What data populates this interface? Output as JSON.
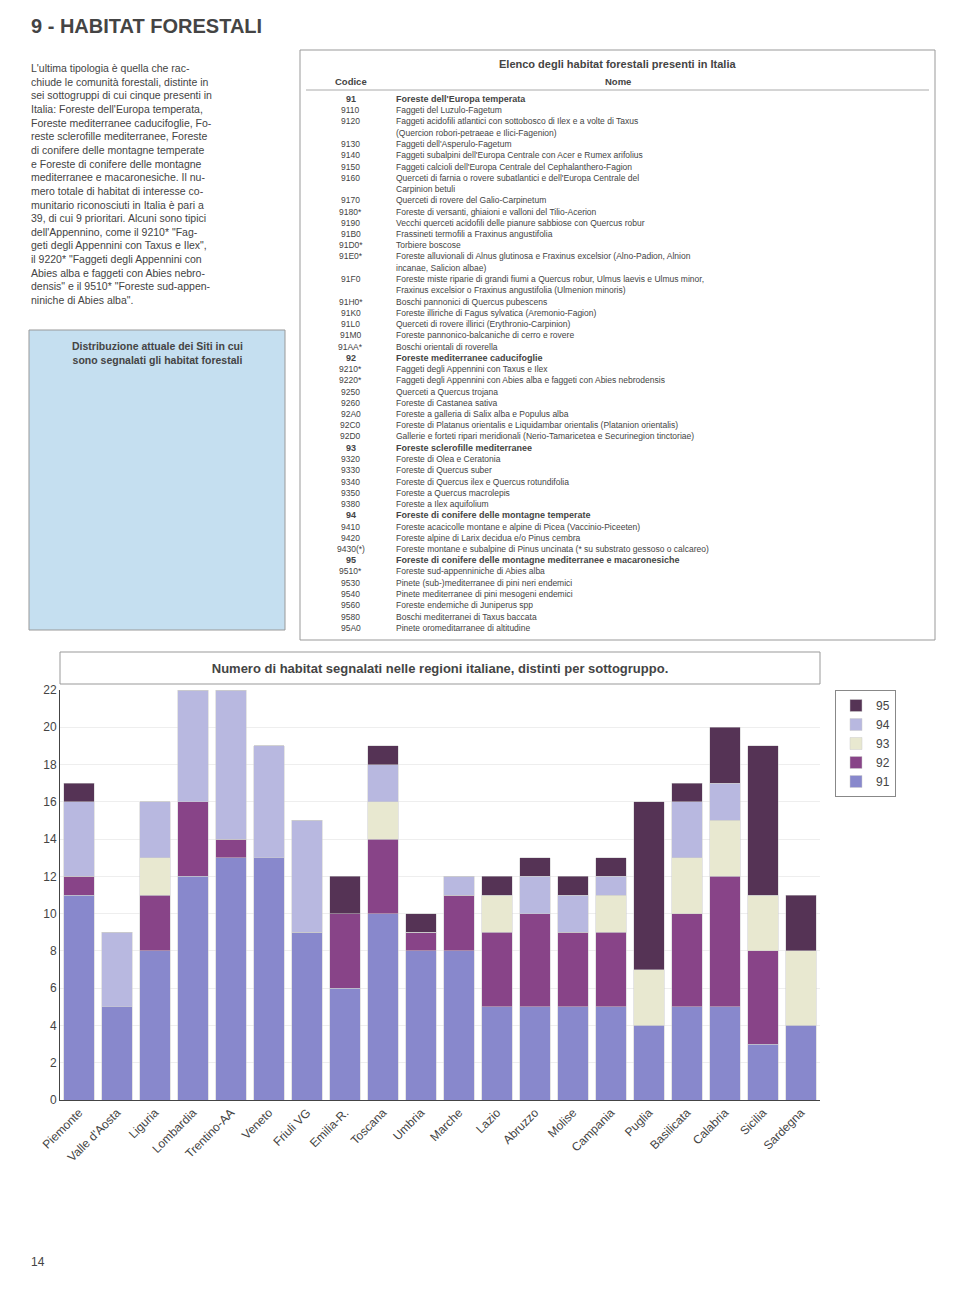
{
  "chart_data": {
    "type": "bar",
    "title": "Numero di habitat segnalati nelle regioni italiane, distinti per sottogruppo.",
    "categories": [
      "Piemonte",
      "Valle d'Aosta",
      "Liguria",
      "Lombardia",
      "Trentino-AA",
      "Veneto",
      "Friuli VG",
      "Emilia-R.",
      "Toscana",
      "Umbria",
      "Marche",
      "Lazio",
      "Abruzzo",
      "Molise",
      "Campania",
      "Puglia",
      "Basilicata",
      "Calabria",
      "Sicilia",
      "Sardegna"
    ],
    "series": [
      {
        "name": "91",
        "color": "#8888cc",
        "values": [
          11,
          5,
          8,
          12,
          13,
          13,
          9,
          6,
          10,
          8,
          8,
          5,
          5,
          5,
          5,
          4,
          5,
          5,
          3,
          4
        ]
      },
      {
        "name": "92",
        "color": "#884488",
        "values": [
          1,
          0,
          3,
          4,
          1,
          0,
          0,
          4,
          4,
          1,
          3,
          4,
          5,
          4,
          4,
          0,
          5,
          7,
          5,
          0
        ]
      },
      {
        "name": "93",
        "color": "#e8e8d0",
        "values": [
          0,
          0,
          2,
          0,
          0,
          0,
          0,
          0,
          2,
          0,
          0,
          2,
          0,
          0,
          2,
          3,
          3,
          3,
          3,
          4
        ]
      },
      {
        "name": "94",
        "color": "#b8b8e0",
        "values": [
          4,
          4,
          3,
          6,
          8,
          6,
          6,
          0,
          2,
          0,
          1,
          0,
          2,
          2,
          1,
          0,
          3,
          2,
          0,
          0
        ]
      },
      {
        "name": "95",
        "color": "#553355",
        "values": [
          1,
          0,
          0,
          0,
          0,
          0,
          0,
          2,
          1,
          1,
          0,
          1,
          1,
          1,
          1,
          9,
          1,
          3,
          8,
          3
        ]
      }
    ],
    "stacked": true,
    "ylim": [
      0,
      22
    ],
    "yticks": [
      0,
      2,
      4,
      6,
      8,
      10,
      12,
      14,
      16,
      18,
      20,
      22
    ],
    "grid": true,
    "legend": "upper right",
    "annotations": [
      "9 - HABITAT FORESTALI",
      "L'ultima tipologia è quella che rac-\nchiude le comunità forestali, distinte in\nsei sottogruppi di cui cinque presenti in\nItalia: Foreste dell'Europa temperata,\nForeste mediterranee caducifoglie, Fo-\nreste sclerofille mediterranee, Foreste\ndi conifere delle montagne temperate\ne Foreste di conifere delle montagne\nmediterranee e macaronesiche. Il nu-\nmero totale di habitat di interesse co-\nmunitario riconosciuti in Italia è pari a\n39, di cui 9 prioritari. Alcuni sono tipici\ndell'Appennino, come il 9210* \"Fag-\ngeti degli Appennini con Taxus e Ilex\",\nil 9220* \"Faggeti degli Appennini con\nAbies alba e faggeti con Abies nebro-\ndensis\" e il 9510* \"Foreste sud-appen-\nniniche di Abies alba\".",
      "Distribuzione attuale dei Siti in cui\nsono segnalati gli habitat forestali",
      "14"
    ],
    "table": {
      "title": "Elenco degli habitat forestali presenti in Italia",
      "columns": [
        "Codice",
        "Nome"
      ],
      "rows": [
        [
          "91",
          "Foreste dell'Europa temperata",
          true
        ],
        [
          "9110",
          "Faggeti del Luzulo-Fagetum",
          false
        ],
        [
          "9120",
          "Faggeti acidofili atlantici con sottobosco di Ilex e a volte di Taxus",
          false
        ],
        [
          null,
          "(Quercion robori-petraeae e Ilici-Fagenion)",
          false
        ],
        [
          "9130",
          "Faggeti dell'Asperulo-Fagetum",
          false
        ],
        [
          "9140",
          "Faggeti subalpini dell'Europa Centrale con Acer e Rumex arifolius",
          false
        ],
        [
          "9150",
          "Faggeti calcioli dell'Europa Centrale del Cephalanthero-Fagion",
          false
        ],
        [
          "9160",
          "Querceti di farnia o rovere subatlantici e dell'Europa Centrale del",
          false
        ],
        [
          null,
          "Carpinion betuli",
          false
        ],
        [
          "9170",
          "Querceti di rovere del Galio-Carpinetum",
          false
        ],
        [
          "9180*",
          "Foreste di versanti, ghiaioni e valloni del Tilio-Acerion",
          false
        ],
        [
          "9190",
          "Vecchi querceti acidofili delle pianure sabbiose con Quercus robur",
          false
        ],
        [
          "91B0",
          "Frassineti termofili a Fraxinus angustifolia",
          false
        ],
        [
          "91D0*",
          "Torbiere boscose",
          false
        ],
        [
          "91E0*",
          "Foreste alluvionali di Alnus glutinosa e Fraxinus excelsior (Alno-Padion, Alnion",
          false
        ],
        [
          null,
          "incanae, Salicion albae)",
          false
        ],
        [
          "91F0",
          "Foreste miste riparie di grandi fiumi a Quercus robur, Ulmus laevis e Ulmus minor,",
          false
        ],
        [
          null,
          "Fraxinus excelsior o Fraxinus angustifolia (Ulmenion minoris)",
          false
        ],
        [
          "91H0*",
          "Boschi pannonici di Quercus pubescens",
          false
        ],
        [
          "91K0",
          "Foreste illiriche di Fagus sylvatica (Aremonio-Fagion)",
          false
        ],
        [
          "91L0",
          "Querceti di rovere illirici (Erythronio-Carpinion)",
          false
        ],
        [
          "91M0",
          "Foreste pannonico-balcaniche di cerro e rovere",
          false
        ],
        [
          "91AA*",
          "Boschi orientali di roverella",
          false
        ],
        [
          "92",
          "Foreste mediterranee caducifoglie",
          true
        ],
        [
          "9210*",
          "Faggeti degli Appennini con Taxus e Ilex",
          false
        ],
        [
          "9220*",
          "Faggeti degli Appennini con Abies alba e faggeti con Abies nebrodensis",
          false
        ],
        [
          "9250",
          "Querceti a Quercus trojana",
          false
        ],
        [
          "9260",
          "Foreste di Castanea sativa",
          false
        ],
        [
          "92A0",
          "Foreste a galleria di Salix alba e Populus alba",
          false
        ],
        [
          "92C0",
          "Foreste di Platanus orientalis e Liquidambar orientalis (Platanion orientalis)",
          false
        ],
        [
          "92D0",
          "Gallerie e forteti ripari meridionali (Nerio-Tamaricetea e Securinegion tinctoriae)",
          false
        ],
        [
          "93",
          "Foreste sclerofille mediterranee",
          true
        ],
        [
          "9320",
          "Foreste di Olea e Ceratonia",
          false
        ],
        [
          "9330",
          "Foreste di Quercus suber",
          false
        ],
        [
          "9340",
          "Foreste di Quercus ilex e Quercus rotundifolia",
          false
        ],
        [
          "9350",
          "Foreste a Quercus macrolepis",
          false
        ],
        [
          "9380",
          "Foreste a Ilex aquifolium",
          false
        ],
        [
          "94",
          "Foreste di conifere delle montagne temperate",
          true
        ],
        [
          "9410",
          "Foreste acacicolle montane e alpine di Picea (Vaccinio-Piceeten)",
          false
        ],
        [
          "9420",
          "Foreste alpine di Larix decidua e/o Pinus cembra",
          false
        ],
        [
          "9430(*)",
          "Foreste montane e subalpine di Pinus uncinata (* su substrato gessoso o calcareo)",
          false
        ],
        [
          "95",
          "Foreste di conifere delle montagne mediterranee e macaronesiche",
          true
        ],
        [
          "9510*",
          "Foreste sud-appenniniche di Abies alba",
          false
        ],
        [
          "9530",
          "Pinete (sub-)mediterranee di pini neri endemici",
          false
        ],
        [
          "9540",
          "Pinete mediterranee di pini mesogeni endemici",
          false
        ],
        [
          "9560",
          "Foreste endemiche di Juniperus spp",
          false
        ],
        [
          "9580",
          "Boschi mediterranei di Taxus baccata",
          false
        ],
        [
          "95A0",
          "Pinete oromeditarranee di altitudine",
          false
        ]
      ]
    }
  }
}
